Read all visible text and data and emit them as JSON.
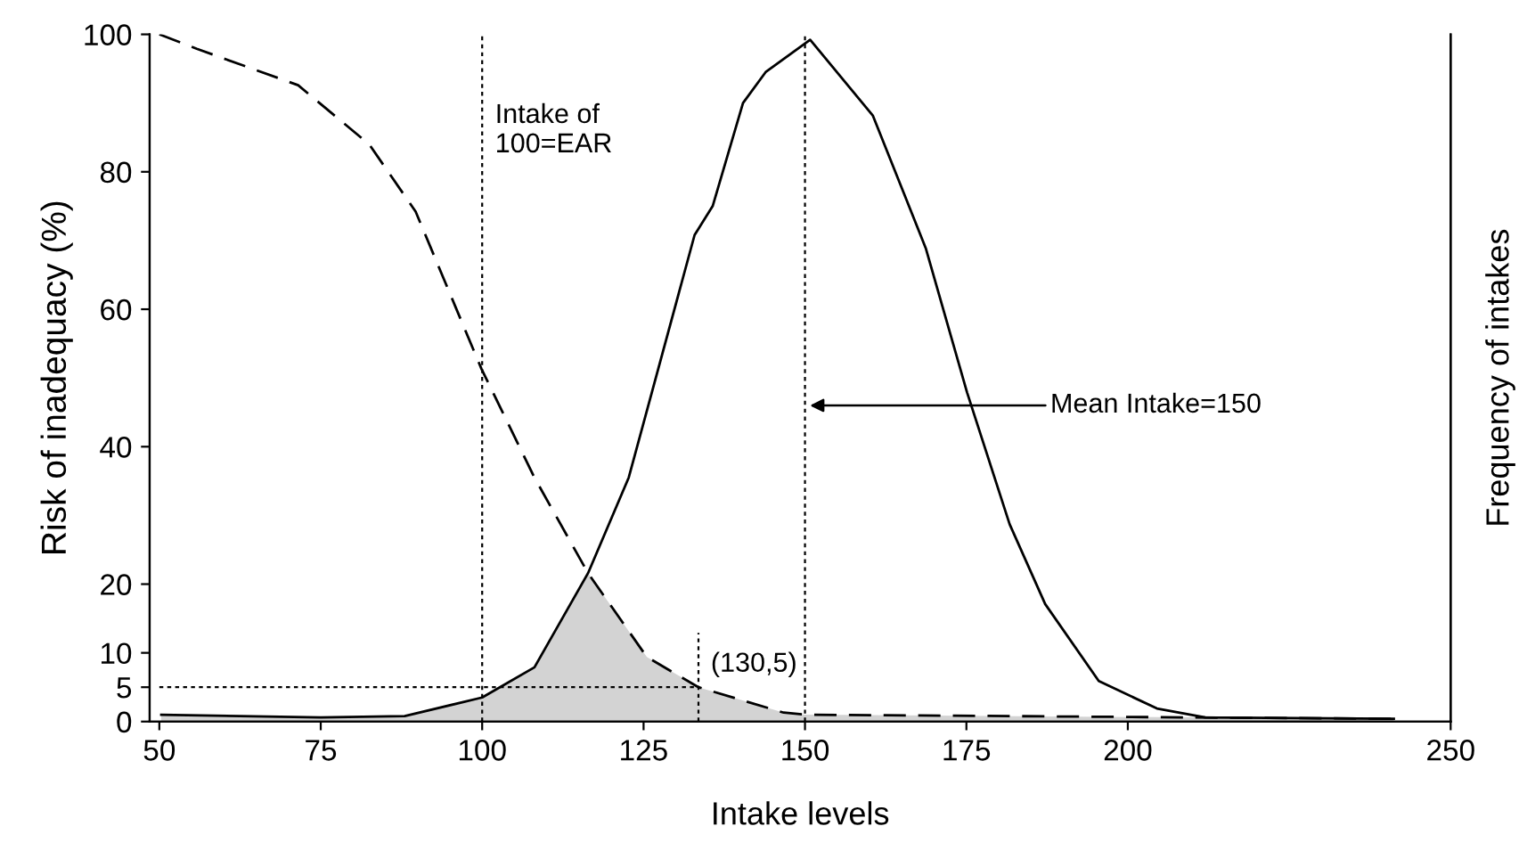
{
  "chart_data": {
    "type": "line",
    "xlabel": "Intake levels",
    "ylabel": "Risk of inadequacy (%)",
    "y2label": "Frequency of intakes",
    "xlim": [
      48.5,
      250
    ],
    "xticks": [
      50,
      75,
      100,
      125,
      150,
      175,
      200,
      250
    ],
    "ylim": [
      0,
      100
    ],
    "yticks": [
      0,
      5,
      10,
      20,
      40,
      60,
      80,
      100
    ],
    "grid": false,
    "marker": "none",
    "series": [
      {
        "type": "area",
        "color": "#d3d3d3",
        "x": [
          50.3,
          75,
          88,
          100,
          108.1,
          116.4,
          125.5,
          133.5,
          146.7,
          150,
          241.2
        ],
        "values": [
          1.0,
          0.6,
          0.8,
          3.5,
          7.9,
          21.6,
          9.4,
          5,
          1.3,
          1,
          0.4
        ]
      },
      {
        "color": "#000000",
        "line_style": "dashed",
        "x": [
          50,
          55.8,
          71.5,
          82.5,
          89.7,
          99.9,
          108.1,
          116.4,
          125.5,
          133.5,
          146.7,
          150,
          241.2
        ],
        "values": [
          100,
          97.9,
          92.6,
          84,
          74.2,
          51.3,
          35.5,
          21.6,
          9.4,
          5,
          1.3,
          1,
          0.4
        ]
      },
      {
        "color": "#000000",
        "line_style": "solid",
        "x": [
          50.3,
          75,
          88,
          100,
          108.1,
          116.4,
          122.7,
          132.9,
          135.7,
          140.4,
          143.9,
          150.8,
          160.5,
          168.7,
          175.1,
          181.7,
          187.2,
          195.5,
          204.5,
          212,
          241.2
        ],
        "values": [
          1.0,
          0.6,
          0.8,
          3.5,
          7.9,
          21.6,
          35.5,
          70.8,
          75,
          90,
          94.5,
          99.2,
          88.2,
          68.9,
          47.9,
          28.7,
          17.1,
          5.9,
          1.9,
          0.6,
          0.4
        ]
      },
      {
        "color": "#000000",
        "line_style": "dotted",
        "x": [
          50,
          133.5
        ],
        "values": [
          5,
          5
        ]
      },
      {
        "color": "#000000",
        "line_style": "dotted",
        "x": [
          133.5,
          133.5
        ],
        "values": [
          0,
          12.9
        ]
      }
    ],
    "ref_lines": [
      {
        "axis": "x",
        "value": 100,
        "color": "#000000",
        "line_style": "dotted"
      },
      {
        "axis": "x",
        "value": 150,
        "color": "#000000",
        "line_style": "dotted"
      }
    ],
    "annotations": [
      {
        "text": "Intake of\n100=EAR",
        "x": 100,
        "y": 86
      },
      {
        "text": "(130,5)",
        "x": 133.5,
        "y": 5
      },
      {
        "text": "Mean Intake=150",
        "x": 150,
        "y": 46
      }
    ]
  }
}
